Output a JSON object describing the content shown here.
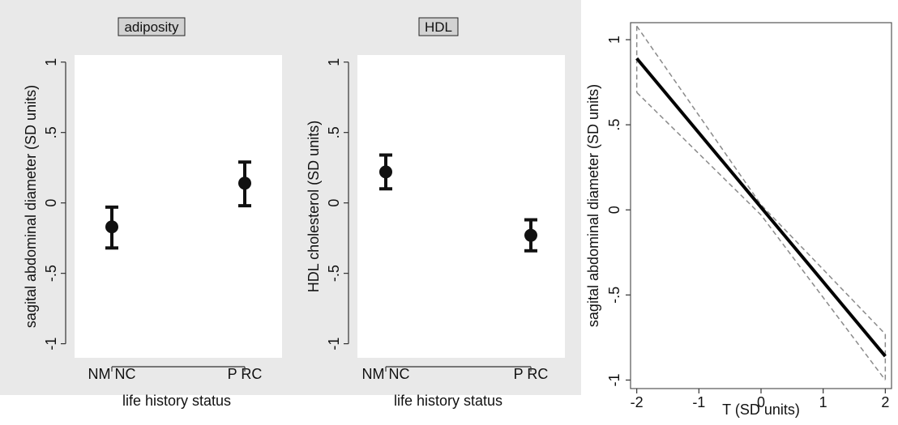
{
  "colors": {
    "panel_background": "#e9e9e9",
    "plot_background": "#ffffff",
    "strip_fill": "#d2d2d2",
    "marker": "#111111",
    "line": "#000000",
    "ci_line": "#8a8a8a"
  },
  "chart_data": [
    {
      "type": "scatter",
      "subtitle": "adiposity",
      "xlabel": "life history status",
      "ylabel": "sagital abdominal diameter (SD units)",
      "categories": [
        "NM NC",
        "P RC"
      ],
      "ylim": [
        -1.1,
        1.05
      ],
      "yticks": [
        -1,
        -0.5,
        0,
        0.5,
        1
      ],
      "ytick_labels": [
        "-1",
        "-.5",
        "0",
        ".5",
        "1"
      ],
      "points": [
        {
          "category": "NM NC",
          "y": -0.17,
          "lower": -0.32,
          "upper": -0.03
        },
        {
          "category": "P RC",
          "y": 0.14,
          "lower": -0.02,
          "upper": 0.29
        }
      ],
      "error_bars": true,
      "grid": false
    },
    {
      "type": "scatter",
      "subtitle": "HDL",
      "xlabel": "life history status",
      "ylabel": "HDL cholesterol (SD units)",
      "categories": [
        "NM NC",
        "P RC"
      ],
      "ylim": [
        -1.1,
        1.05
      ],
      "yticks": [
        -1,
        -0.5,
        0,
        0.5,
        1
      ],
      "ytick_labels": [
        "-1",
        "-.5",
        "0",
        ".5",
        "1"
      ],
      "points": [
        {
          "category": "NM NC",
          "y": 0.22,
          "lower": 0.1,
          "upper": 0.34
        },
        {
          "category": "P RC",
          "y": -0.23,
          "lower": -0.34,
          "upper": -0.12
        }
      ],
      "error_bars": true,
      "grid": false
    },
    {
      "type": "line",
      "xlabel": "T (SD units)",
      "ylabel": "sagital abdominal diameter (SD units)",
      "xlim": [
        -2.1,
        2.1
      ],
      "ylim": [
        -1.05,
        1.1
      ],
      "xticks": [
        -2,
        -1,
        0,
        1,
        2
      ],
      "xtick_labels": [
        "-2",
        "-1",
        "0",
        "1",
        "2"
      ],
      "yticks": [
        -1,
        -0.5,
        0,
        0.5,
        1
      ],
      "ytick_labels": [
        "-1",
        "-.5",
        "0",
        ".5",
        "1"
      ],
      "fit": {
        "x": [
          -2,
          2
        ],
        "y": [
          0.89,
          -0.86
        ]
      },
      "ci_upper": {
        "x": [
          -2,
          0,
          2
        ],
        "y": [
          1.08,
          0.03,
          -0.73
        ]
      },
      "ci_lower": {
        "x": [
          -2,
          0,
          2
        ],
        "y": [
          0.69,
          -0.03,
          -1.0
        ]
      },
      "grid": false
    }
  ]
}
